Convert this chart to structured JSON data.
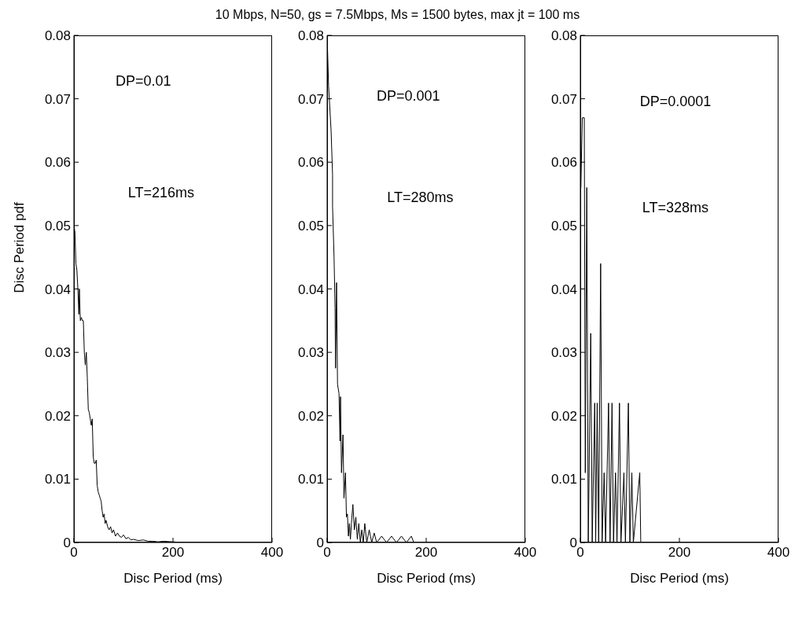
{
  "chart_data": [
    {
      "type": "line",
      "title": "10 Mbps, N=50, gs = 7.5Mbps, Ms = 1500 bytes, max jt = 100 ms",
      "xlabel": "Disc Period (ms)",
      "ylabel": "Disc Period pdf",
      "annotations": [
        "DP=0.01",
        "LT=216ms"
      ],
      "series": [
        {
          "color": "#000000",
          "x": [
            0,
            2,
            4,
            6,
            8,
            10,
            11,
            13,
            15,
            17,
            19,
            21,
            23,
            25,
            27,
            29,
            31,
            33,
            35,
            37,
            39,
            41,
            43,
            45,
            47,
            49,
            51,
            53,
            55,
            57,
            59,
            61,
            63,
            65,
            68,
            71,
            74,
            77,
            80,
            84,
            88,
            92,
            96,
            100,
            105,
            110,
            115,
            120,
            130,
            140,
            150,
            160,
            170,
            180,
            200,
            220
          ],
          "values": [
            0.05,
            0.049,
            0.044,
            0.043,
            0.04,
            0.036,
            0.04,
            0.035,
            0.0355,
            0.035,
            0.035,
            0.03,
            0.028,
            0.03,
            0.026,
            0.021,
            0.0205,
            0.0195,
            0.0185,
            0.0195,
            0.0135,
            0.0125,
            0.0125,
            0.013,
            0.009,
            0.008,
            0.0075,
            0.007,
            0.0065,
            0.005,
            0.004,
            0.0045,
            0.003,
            0.0035,
            0.0025,
            0.002,
            0.0025,
            0.0015,
            0.002,
            0.001,
            0.0015,
            0.001,
            0.0008,
            0.0012,
            0.0006,
            0.0008,
            0.0004,
            0.0005,
            0.0003,
            0.0004,
            0.0002,
            0.0002,
            0.0001,
            0.0002,
            0.0001,
            0
          ]
        }
      ],
      "xlim": [
        0,
        400
      ],
      "xticks": [
        0,
        200,
        400
      ],
      "ylim": [
        0,
        0.08
      ],
      "yticks": [
        0,
        0.01,
        0.02,
        0.03,
        0.04,
        0.05,
        0.06,
        0.07,
        0.08
      ],
      "grid": false,
      "marker": "none",
      "line_style": "solid"
    },
    {
      "type": "line",
      "xlabel": "Disc Period (ms)",
      "annotations": [
        "DP=0.001",
        "LT=280ms"
      ],
      "series": [
        {
          "color": "#000000",
          "x": [
            0,
            3,
            8,
            11,
            11,
            14,
            16,
            17,
            19,
            21,
            24,
            26,
            27,
            29,
            32,
            34,
            37,
            39,
            41,
            43,
            45,
            47,
            49,
            52,
            55,
            58,
            61,
            64,
            67,
            70,
            73,
            76,
            80,
            85,
            90,
            95,
            100,
            110,
            120,
            130,
            140,
            150,
            160,
            170,
            175
          ],
          "values": [
            0.08,
            0.072,
            0.065,
            0.058,
            0.053,
            0.045,
            0.037,
            0.0275,
            0.041,
            0.025,
            0.0235,
            0.016,
            0.023,
            0.011,
            0.017,
            0.007,
            0.011,
            0.004,
            0.0045,
            0.001,
            0.003,
            0.0005,
            0.003,
            0.006,
            0.002,
            0.004,
            0.0005,
            0.003,
            0,
            0.002,
            0,
            0.003,
            0,
            0.002,
            0,
            0.0015,
            0,
            0.001,
            0,
            0.001,
            0,
            0.001,
            0,
            0.001,
            0
          ]
        }
      ],
      "xlim": [
        0,
        400
      ],
      "xticks": [
        0,
        200,
        400
      ],
      "ylim": [
        0,
        0.08
      ],
      "yticks": [
        0,
        0.01,
        0.02,
        0.03,
        0.04,
        0.05,
        0.06,
        0.07,
        0.08
      ],
      "grid": false,
      "marker": "none",
      "line_style": "solid"
    },
    {
      "type": "line",
      "xlabel": "Disc Period (ms)",
      "annotations": [
        "DP=0.0001",
        "LT=328ms"
      ],
      "series": [
        {
          "color": "#000000",
          "x": [
            0,
            1,
            4,
            8,
            10,
            13,
            16,
            21,
            24,
            29,
            31,
            34,
            37,
            41,
            44,
            48,
            51,
            57,
            60,
            64,
            67,
            71,
            74,
            79,
            82,
            88,
            91,
            97,
            100,
            104,
            107,
            120,
            122
          ],
          "values": [
            0.08,
            0.056,
            0.067,
            0.067,
            0.011,
            0.056,
            0,
            0.033,
            0,
            0.022,
            0,
            0.022,
            0,
            0.044,
            0,
            0.011,
            0,
            0.022,
            0,
            0.022,
            0,
            0.011,
            0,
            0.022,
            0,
            0.011,
            0,
            0.022,
            0,
            0.011,
            0,
            0.011,
            0
          ]
        }
      ],
      "xlim": [
        0,
        400
      ],
      "xticks": [
        0,
        200,
        400
      ],
      "ylim": [
        0,
        0.08
      ],
      "yticks": [
        0,
        0.01,
        0.02,
        0.03,
        0.04,
        0.05,
        0.06,
        0.07,
        0.08
      ],
      "grid": false,
      "marker": "none",
      "line_style": "solid"
    }
  ]
}
